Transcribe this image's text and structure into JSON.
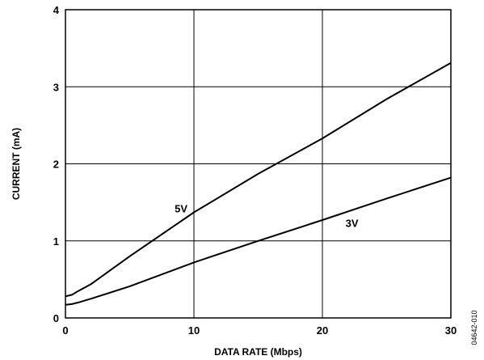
{
  "chart_data": {
    "type": "line",
    "xlabel": "DATA RATE (Mbps)",
    "ylabel": "CURRENT (mA)",
    "xlim": [
      0,
      30
    ],
    "ylim": [
      0,
      4
    ],
    "xticks": [
      0,
      10,
      20,
      30
    ],
    "yticks": [
      0,
      1,
      2,
      3,
      4
    ],
    "grid": true,
    "series": [
      {
        "name": "5V",
        "x": [
          0,
          0.5,
          1,
          2,
          5,
          10,
          15,
          20,
          25,
          30
        ],
        "values": [
          0.28,
          0.3,
          0.35,
          0.44,
          0.8,
          1.37,
          1.87,
          2.33,
          2.84,
          3.31
        ]
      },
      {
        "name": "3V",
        "x": [
          0,
          0.5,
          1,
          2,
          5,
          10,
          15,
          20,
          25,
          30
        ],
        "values": [
          0.17,
          0.18,
          0.2,
          0.25,
          0.41,
          0.72,
          1.0,
          1.27,
          1.55,
          1.82
        ]
      }
    ],
    "annotations": [
      {
        "text": "5V",
        "x": 8.5,
        "y": 1.37
      },
      {
        "text": "3V",
        "x": 21.8,
        "y": 1.18
      }
    ],
    "figure_id": "04642-010"
  }
}
